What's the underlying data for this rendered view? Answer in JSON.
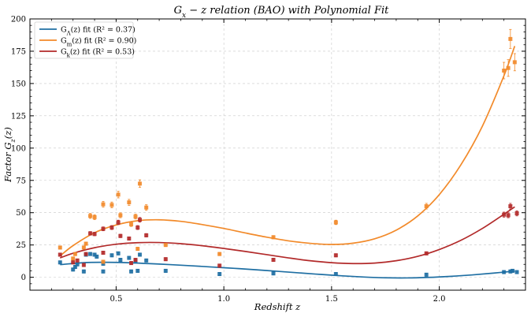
{
  "chart_data": {
    "type": "scatter",
    "title": "G_x − z relation (BAO) with Polynomial Fit",
    "title_parts": {
      "g": "G",
      "sub": "x",
      "rest": "  −  z relation (BAO) with Polynomial Fit"
    },
    "xlabel": "Redshift   z",
    "ylabel": "Factor   G_z(z)",
    "ylabel_parts": {
      "pre": "Factor   G",
      "sub": "z",
      "post": "(z)"
    },
    "xlim": [
      0.1,
      2.4
    ],
    "ylim": [
      -10,
      200
    ],
    "xticks": [
      0.5,
      1.0,
      1.5,
      2.0
    ],
    "xtick_labels": [
      "0.5",
      "1.0",
      "1.5",
      "2.0"
    ],
    "yticks": [
      0,
      25,
      50,
      75,
      100,
      125,
      150,
      175,
      200
    ],
    "ytick_labels": [
      "0",
      "25",
      "50",
      "75",
      "100",
      "125",
      "150",
      "175",
      "200"
    ],
    "grid": true,
    "legend_position": "top-left",
    "series": [
      {
        "name": "G_Λ(z) fit (R² = 0.37)",
        "label_parts": {
          "g": "G",
          "sub": "Λ",
          "rest": "(z) fit (R² = 0.37)"
        },
        "color": "#1f6fa3",
        "points": [
          [
            0.24,
            11.5
          ],
          [
            0.3,
            6.0
          ],
          [
            0.31,
            8.0
          ],
          [
            0.32,
            10.0
          ],
          [
            0.35,
            4.5
          ],
          [
            0.36,
            17.5
          ],
          [
            0.38,
            18.0
          ],
          [
            0.4,
            17.5
          ],
          [
            0.41,
            16.0
          ],
          [
            0.44,
            4.5
          ],
          [
            0.44,
            10.5
          ],
          [
            0.48,
            17.0
          ],
          [
            0.51,
            18.5
          ],
          [
            0.52,
            13.5
          ],
          [
            0.56,
            15.0
          ],
          [
            0.57,
            4.5
          ],
          [
            0.59,
            12.5
          ],
          [
            0.6,
            5.0
          ],
          [
            0.61,
            17.5
          ],
          [
            0.64,
            13.0
          ],
          [
            0.73,
            5.0
          ],
          [
            0.98,
            2.5
          ],
          [
            1.23,
            3.0
          ],
          [
            1.52,
            2.5
          ],
          [
            1.94,
            2.0
          ],
          [
            2.3,
            4.0
          ],
          [
            2.33,
            4.5
          ],
          [
            2.34,
            5.0
          ],
          [
            2.36,
            4.0
          ]
        ],
        "fit": [
          [
            0.24,
            9.8
          ],
          [
            0.35,
            11.3
          ],
          [
            0.45,
            11.6
          ],
          [
            0.55,
            11.3
          ],
          [
            0.65,
            10.6
          ],
          [
            0.75,
            9.8
          ],
          [
            0.85,
            8.9
          ],
          [
            0.95,
            7.9
          ],
          [
            1.05,
            6.9
          ],
          [
            1.15,
            5.8
          ],
          [
            1.25,
            4.6
          ],
          [
            1.35,
            3.4
          ],
          [
            1.45,
            2.2
          ],
          [
            1.55,
            1.1
          ],
          [
            1.65,
            0.2
          ],
          [
            1.75,
            -0.4
          ],
          [
            1.85,
            -0.5
          ],
          [
            1.95,
            -0.1
          ],
          [
            2.05,
            0.7
          ],
          [
            2.15,
            1.8
          ],
          [
            2.25,
            3.2
          ],
          [
            2.35,
            4.8
          ]
        ]
      },
      {
        "name": "G_m(z) fit (R² = 0.90)",
        "label_parts": {
          "g": "G",
          "sub": "m",
          "rest": "(z) fit (R² = 0.90)"
        },
        "color": "#f28a2a",
        "points": [
          [
            0.24,
            23.0
          ],
          [
            0.3,
            14.5
          ],
          [
            0.31,
            18.0
          ],
          [
            0.35,
            23.0
          ],
          [
            0.36,
            26.0
          ],
          [
            0.38,
            47.5
          ],
          [
            0.4,
            46.5
          ],
          [
            0.44,
            56.5
          ],
          [
            0.44,
            12.0
          ],
          [
            0.48,
            56.0
          ],
          [
            0.51,
            64.0
          ],
          [
            0.52,
            48.0
          ],
          [
            0.56,
            58.0
          ],
          [
            0.57,
            41.0
          ],
          [
            0.59,
            47.0
          ],
          [
            0.6,
            22.0
          ],
          [
            0.61,
            72.5
          ],
          [
            0.64,
            54.0
          ],
          [
            0.73,
            25.0
          ],
          [
            0.98,
            18.0
          ],
          [
            1.23,
            31.0
          ],
          [
            1.52,
            42.5
          ],
          [
            1.94,
            55.0
          ],
          [
            2.3,
            160.0
          ],
          [
            2.32,
            162.0
          ],
          [
            2.33,
            184.5
          ],
          [
            2.35,
            166.5
          ]
        ],
        "fit": [
          [
            0.24,
            16.5
          ],
          [
            0.3,
            24.5
          ],
          [
            0.4,
            34.5
          ],
          [
            0.5,
            40.5
          ],
          [
            0.6,
            43.8
          ],
          [
            0.7,
            44.5
          ],
          [
            0.8,
            43.3
          ],
          [
            0.9,
            40.8
          ],
          [
            1.0,
            37.8
          ],
          [
            1.1,
            34.3
          ],
          [
            1.2,
            31.0
          ],
          [
            1.3,
            28.2
          ],
          [
            1.4,
            26.3
          ],
          [
            1.5,
            25.4
          ],
          [
            1.6,
            26.4
          ],
          [
            1.7,
            29.8
          ],
          [
            1.8,
            36.5
          ],
          [
            1.9,
            47.5
          ],
          [
            2.0,
            64.0
          ],
          [
            2.1,
            87.0
          ],
          [
            2.2,
            117.0
          ],
          [
            2.3,
            156.0
          ],
          [
            2.35,
            179.0
          ]
        ]
      },
      {
        "name": "G_k(z) fit (R² = 0.53)",
        "label_parts": {
          "g": "G",
          "sub": "k",
          "rest": "(z) fit (R² = 0.53)"
        },
        "color": "#b22a2a",
        "points": [
          [
            0.24,
            17.5
          ],
          [
            0.3,
            11.5
          ],
          [
            0.32,
            13.0
          ],
          [
            0.35,
            9.5
          ],
          [
            0.36,
            18.0
          ],
          [
            0.38,
            34.0
          ],
          [
            0.4,
            33.5
          ],
          [
            0.44,
            19.0
          ],
          [
            0.44,
            37.5
          ],
          [
            0.48,
            38.5
          ],
          [
            0.51,
            42.5
          ],
          [
            0.52,
            32.0
          ],
          [
            0.56,
            30.0
          ],
          [
            0.57,
            11.0
          ],
          [
            0.59,
            13.5
          ],
          [
            0.6,
            38.5
          ],
          [
            0.61,
            44.5
          ],
          [
            0.64,
            32.5
          ],
          [
            0.73,
            14.0
          ],
          [
            0.98,
            9.0
          ],
          [
            1.23,
            13.5
          ],
          [
            1.52,
            17.0
          ],
          [
            1.94,
            18.5
          ],
          [
            2.3,
            48.5
          ],
          [
            2.32,
            48.0
          ],
          [
            2.33,
            55.0
          ],
          [
            2.36,
            49.5
          ]
        ],
        "fit": [
          [
            0.24,
            15.0
          ],
          [
            0.3,
            18.6
          ],
          [
            0.4,
            22.9
          ],
          [
            0.5,
            25.6
          ],
          [
            0.6,
            26.8
          ],
          [
            0.7,
            26.9
          ],
          [
            0.8,
            26.0
          ],
          [
            0.9,
            24.4
          ],
          [
            1.0,
            22.3
          ],
          [
            1.1,
            20.0
          ],
          [
            1.2,
            17.5
          ],
          [
            1.3,
            15.0
          ],
          [
            1.4,
            12.8
          ],
          [
            1.5,
            11.3
          ],
          [
            1.6,
            10.6
          ],
          [
            1.7,
            11.0
          ],
          [
            1.8,
            12.8
          ],
          [
            1.9,
            16.2
          ],
          [
            2.0,
            21.5
          ],
          [
            2.1,
            28.6
          ],
          [
            2.2,
            37.8
          ],
          [
            2.3,
            48.8
          ],
          [
            2.35,
            54.5
          ]
        ]
      }
    ]
  }
}
